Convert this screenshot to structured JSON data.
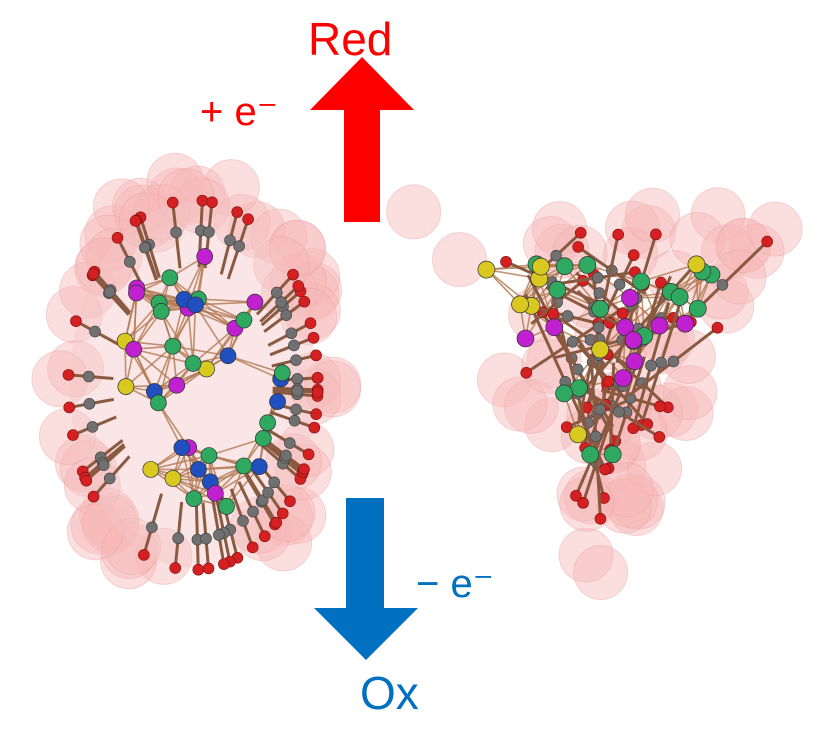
{
  "labels": {
    "reduction": "Red",
    "oxidation": "Ox",
    "add_electron": "+ e⁻",
    "remove_electron": "− e⁻"
  },
  "colors": {
    "reduction": "#ff0000",
    "oxidation": "#0070c0",
    "oxygen": "#d42020",
    "carbon": "#707070",
    "metal_green": "#2fa860",
    "metal_magenta": "#c020d0",
    "metal_blue": "#2050c0",
    "metal_yellow": "#d8c820",
    "bond": "#b07850",
    "halo": "#f6b8b8"
  },
  "clusters": [
    {
      "shape": "ellipsoid",
      "core_atoms": [
        "magenta",
        "blue",
        "green",
        "yellow"
      ]
    },
    {
      "shape": "triangular",
      "core_atoms": [
        "magenta",
        "green",
        "yellow"
      ]
    }
  ]
}
